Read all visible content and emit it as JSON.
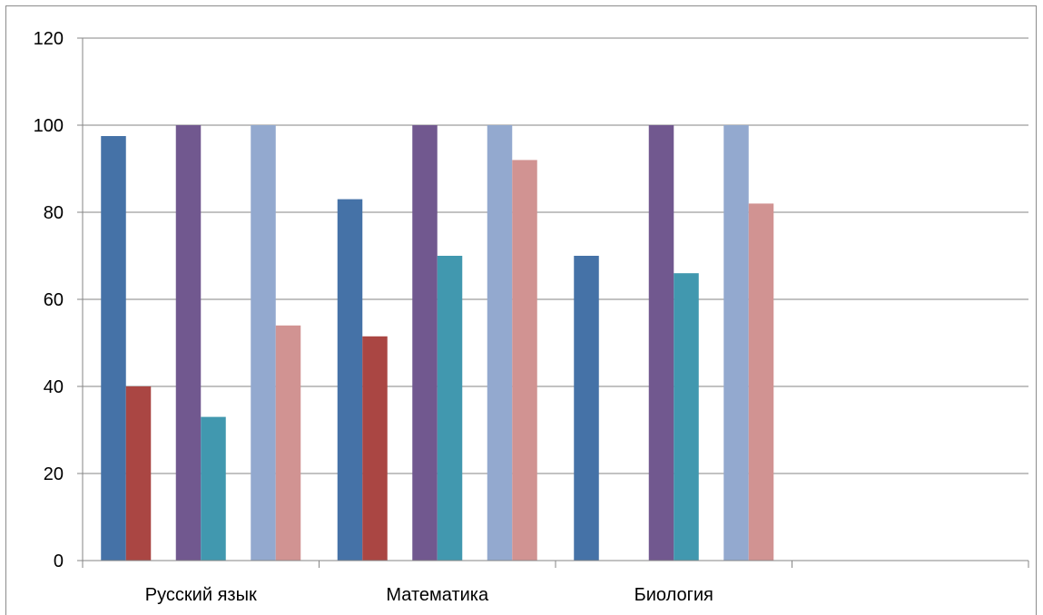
{
  "chart_data": {
    "type": "bar",
    "categories": [
      "Русский язык",
      "Математика",
      "Биология",
      ""
    ],
    "series": [
      {
        "values": [
          97.5,
          83,
          70,
          null
        ],
        "color": "#4572A7"
      },
      {
        "values": [
          40,
          51.5,
          null,
          null
        ],
        "color": "#AA4643"
      },
      {
        "values": [
          100,
          100,
          100,
          null
        ],
        "color": "#71588F"
      },
      {
        "values": [
          33,
          70,
          66,
          null
        ],
        "color": "#4198AF"
      },
      {
        "values": [
          100,
          100,
          100,
          null
        ],
        "color": "#93A9CF"
      },
      {
        "values": [
          54,
          92,
          82,
          null
        ],
        "color": "#D19392"
      }
    ],
    "ylim": [
      0,
      120
    ],
    "yticks": [
      0,
      20,
      40,
      60,
      80,
      100,
      120
    ],
    "grid": true,
    "legend": "none"
  }
}
